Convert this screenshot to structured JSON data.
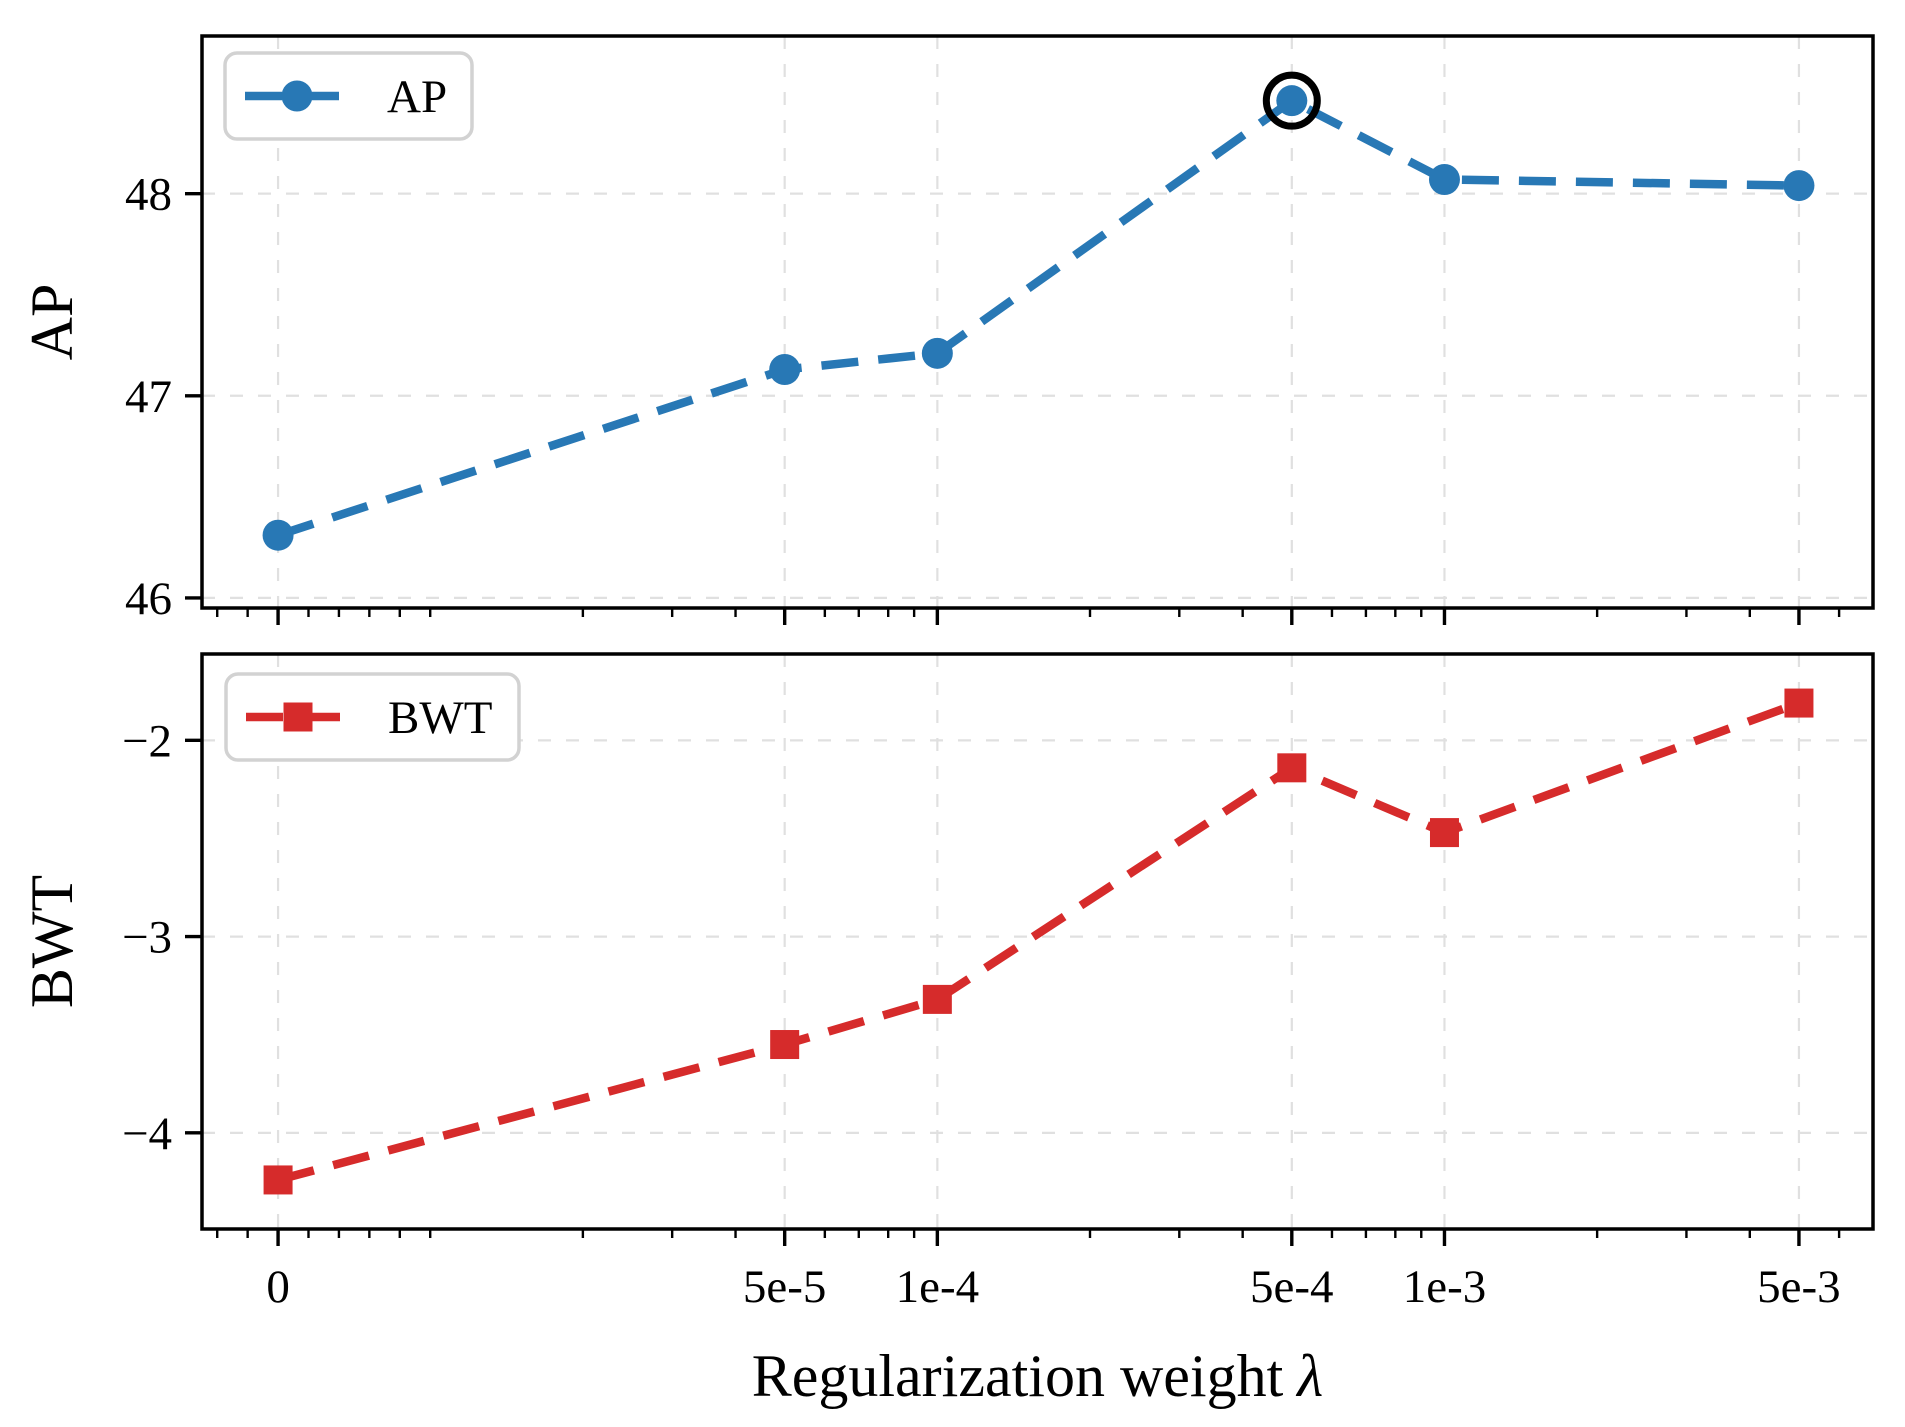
{
  "figure": {
    "xlabel_text": "Regularization weight",
    "xlabel_symbol": "λ",
    "xscale": "symlog",
    "x_values": [
      0,
      5e-05,
      0.0001,
      0.0005,
      0.001,
      0.005
    ],
    "x_tick_labels": [
      "0",
      "5e-5",
      "1e-4",
      "5e-4",
      "1e-3",
      "5e-3"
    ],
    "background": "#ffffff",
    "grid": "on",
    "grid_color": "#e0e0e0",
    "spine_color": "#000000"
  },
  "chart_data": [
    {
      "type": "line",
      "name": "AP",
      "ylabel": "AP",
      "color": "#2878b5",
      "marker": "circle",
      "linestyle": "dashed",
      "x": [
        0,
        5e-05,
        0.0001,
        0.0005,
        0.001,
        0.005
      ],
      "values": [
        46.31,
        47.13,
        47.21,
        48.46,
        48.07,
        48.04
      ],
      "yticks": [
        48,
        47,
        46
      ],
      "ytick_labels": [
        "48",
        "47",
        "46"
      ],
      "ylim": [
        45.95,
        48.78
      ],
      "legend_position": "upper-left",
      "highlight": {
        "index": 3,
        "style": "black-open-circle",
        "color": "#000000"
      }
    },
    {
      "type": "line",
      "name": "BWT",
      "ylabel": "BWT",
      "color": "#d62b2b",
      "marker": "square",
      "linestyle": "dashed",
      "x": [
        0,
        5e-05,
        0.0001,
        0.0005,
        0.001,
        0.005
      ],
      "values": [
        -4.24,
        -3.55,
        -3.32,
        -2.14,
        -2.47,
        -1.81
      ],
      "yticks": [
        -2,
        -3,
        -4
      ],
      "ytick_labels": [
        "−2",
        "−3",
        "−4"
      ],
      "ylim": [
        -4.49,
        -1.56
      ],
      "legend_position": "upper-left",
      "highlight": null
    }
  ]
}
